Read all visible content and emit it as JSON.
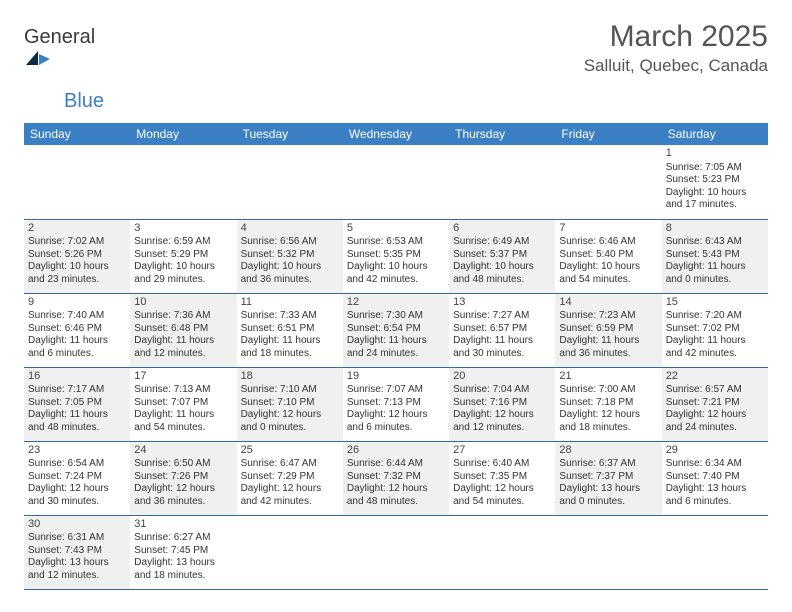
{
  "logo": {
    "general": "General",
    "blue": "Blue"
  },
  "title": "March 2025",
  "location": "Salluit, Quebec, Canada",
  "colors": {
    "header_bg": "#3b7fc4",
    "header_text": "#ffffff",
    "row_divider": "#2f6aa8",
    "cell_even": "#f0f0f0",
    "cell_odd": "#ffffff",
    "text": "#333333",
    "title_text": "#555555"
  },
  "weekdays": [
    "Sunday",
    "Monday",
    "Tuesday",
    "Wednesday",
    "Thursday",
    "Friday",
    "Saturday"
  ],
  "first_day_index": 6,
  "days": [
    {
      "n": 1,
      "sunrise": "7:05 AM",
      "sunset": "5:23 PM",
      "daylight": "10 hours and 17 minutes."
    },
    {
      "n": 2,
      "sunrise": "7:02 AM",
      "sunset": "5:26 PM",
      "daylight": "10 hours and 23 minutes."
    },
    {
      "n": 3,
      "sunrise": "6:59 AM",
      "sunset": "5:29 PM",
      "daylight": "10 hours and 29 minutes."
    },
    {
      "n": 4,
      "sunrise": "6:56 AM",
      "sunset": "5:32 PM",
      "daylight": "10 hours and 36 minutes."
    },
    {
      "n": 5,
      "sunrise": "6:53 AM",
      "sunset": "5:35 PM",
      "daylight": "10 hours and 42 minutes."
    },
    {
      "n": 6,
      "sunrise": "6:49 AM",
      "sunset": "5:37 PM",
      "daylight": "10 hours and 48 minutes."
    },
    {
      "n": 7,
      "sunrise": "6:46 AM",
      "sunset": "5:40 PM",
      "daylight": "10 hours and 54 minutes."
    },
    {
      "n": 8,
      "sunrise": "6:43 AM",
      "sunset": "5:43 PM",
      "daylight": "11 hours and 0 minutes."
    },
    {
      "n": 9,
      "sunrise": "7:40 AM",
      "sunset": "6:46 PM",
      "daylight": "11 hours and 6 minutes."
    },
    {
      "n": 10,
      "sunrise": "7:36 AM",
      "sunset": "6:48 PM",
      "daylight": "11 hours and 12 minutes."
    },
    {
      "n": 11,
      "sunrise": "7:33 AM",
      "sunset": "6:51 PM",
      "daylight": "11 hours and 18 minutes."
    },
    {
      "n": 12,
      "sunrise": "7:30 AM",
      "sunset": "6:54 PM",
      "daylight": "11 hours and 24 minutes."
    },
    {
      "n": 13,
      "sunrise": "7:27 AM",
      "sunset": "6:57 PM",
      "daylight": "11 hours and 30 minutes."
    },
    {
      "n": 14,
      "sunrise": "7:23 AM",
      "sunset": "6:59 PM",
      "daylight": "11 hours and 36 minutes."
    },
    {
      "n": 15,
      "sunrise": "7:20 AM",
      "sunset": "7:02 PM",
      "daylight": "11 hours and 42 minutes."
    },
    {
      "n": 16,
      "sunrise": "7:17 AM",
      "sunset": "7:05 PM",
      "daylight": "11 hours and 48 minutes."
    },
    {
      "n": 17,
      "sunrise": "7:13 AM",
      "sunset": "7:07 PM",
      "daylight": "11 hours and 54 minutes."
    },
    {
      "n": 18,
      "sunrise": "7:10 AM",
      "sunset": "7:10 PM",
      "daylight": "12 hours and 0 minutes."
    },
    {
      "n": 19,
      "sunrise": "7:07 AM",
      "sunset": "7:13 PM",
      "daylight": "12 hours and 6 minutes."
    },
    {
      "n": 20,
      "sunrise": "7:04 AM",
      "sunset": "7:16 PM",
      "daylight": "12 hours and 12 minutes."
    },
    {
      "n": 21,
      "sunrise": "7:00 AM",
      "sunset": "7:18 PM",
      "daylight": "12 hours and 18 minutes."
    },
    {
      "n": 22,
      "sunrise": "6:57 AM",
      "sunset": "7:21 PM",
      "daylight": "12 hours and 24 minutes."
    },
    {
      "n": 23,
      "sunrise": "6:54 AM",
      "sunset": "7:24 PM",
      "daylight": "12 hours and 30 minutes."
    },
    {
      "n": 24,
      "sunrise": "6:50 AM",
      "sunset": "7:26 PM",
      "daylight": "12 hours and 36 minutes."
    },
    {
      "n": 25,
      "sunrise": "6:47 AM",
      "sunset": "7:29 PM",
      "daylight": "12 hours and 42 minutes."
    },
    {
      "n": 26,
      "sunrise": "6:44 AM",
      "sunset": "7:32 PM",
      "daylight": "12 hours and 48 minutes."
    },
    {
      "n": 27,
      "sunrise": "6:40 AM",
      "sunset": "7:35 PM",
      "daylight": "12 hours and 54 minutes."
    },
    {
      "n": 28,
      "sunrise": "6:37 AM",
      "sunset": "7:37 PM",
      "daylight": "13 hours and 0 minutes."
    },
    {
      "n": 29,
      "sunrise": "6:34 AM",
      "sunset": "7:40 PM",
      "daylight": "13 hours and 6 minutes."
    },
    {
      "n": 30,
      "sunrise": "6:31 AM",
      "sunset": "7:43 PM",
      "daylight": "13 hours and 12 minutes."
    },
    {
      "n": 31,
      "sunrise": "6:27 AM",
      "sunset": "7:45 PM",
      "daylight": "13 hours and 18 minutes."
    }
  ],
  "labels": {
    "sunrise": "Sunrise:",
    "sunset": "Sunset:",
    "daylight": "Daylight:"
  }
}
